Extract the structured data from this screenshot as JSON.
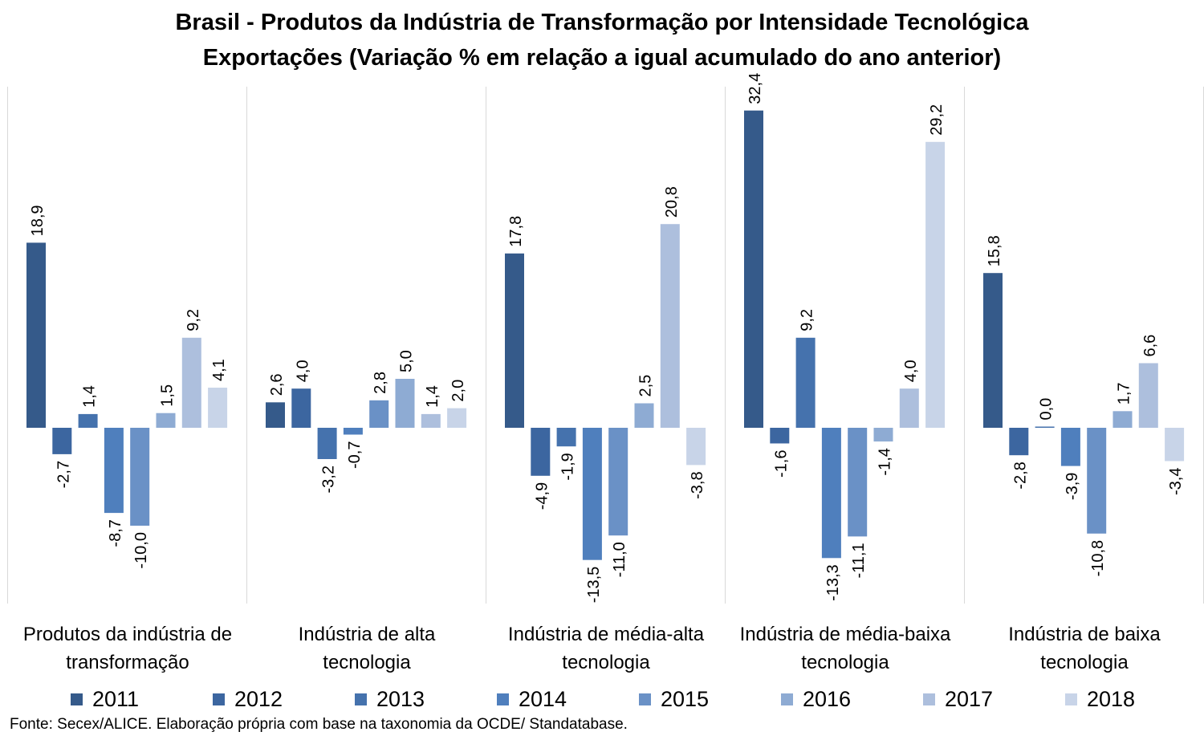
{
  "title_line1": "Brasil - Produtos da Indústria de Transformação por Intensidade Tecnológica",
  "title_line2": "Exportações (Variação % em relação a igual acumulado do ano anterior)",
  "source": "Fonte: Secex/ALICE. Elaboração própria com base na taxonomia da OCDE/ Standatabase.",
  "chart_data": {
    "type": "bar",
    "categories": [
      [
        "Produtos da indústria de",
        "transformação"
      ],
      [
        "Indústria de alta",
        "tecnologia"
      ],
      [
        "Indústria de média-alta",
        "tecnologia"
      ],
      [
        "Indústria de média-baixa",
        "tecnologia"
      ],
      [
        "Indústria de baixa",
        "tecnologia"
      ]
    ],
    "series": [
      {
        "name": "2011",
        "color": "#355a8a",
        "values": [
          18.9,
          2.6,
          17.8,
          32.4,
          15.8
        ],
        "labels": [
          "18,9",
          "2,6",
          "17,8",
          "32,4",
          "15,8"
        ]
      },
      {
        "name": "2012",
        "color": "#3c66a0",
        "values": [
          -2.7,
          4.0,
          -4.9,
          -1.6,
          -2.8
        ],
        "labels": [
          "-2,7",
          "4,0",
          "-4,9",
          "-1,6",
          "-2,8"
        ]
      },
      {
        "name": "2013",
        "color": "#4572ad",
        "values": [
          1.4,
          -3.2,
          -1.9,
          9.2,
          0.0
        ],
        "labels": [
          "1,4",
          "-3,2",
          "-1,9",
          "9,2",
          "0,0"
        ]
      },
      {
        "name": "2014",
        "color": "#4f7fbd",
        "values": [
          -8.7,
          -0.7,
          -13.5,
          -13.3,
          -3.9
        ],
        "labels": [
          "-8,7",
          "-0,7",
          "-13,5",
          "-13,3",
          "-3,9"
        ]
      },
      {
        "name": "2015",
        "color": "#6a91c6",
        "values": [
          -10.0,
          2.8,
          -11.0,
          -11.1,
          -10.8
        ],
        "labels": [
          "-10,0",
          "2,8",
          "-11,0",
          "-11,1",
          "-10,8"
        ]
      },
      {
        "name": "2016",
        "color": "#8eabd3",
        "values": [
          1.5,
          5.0,
          2.5,
          -1.4,
          1.7
        ],
        "labels": [
          "1,5",
          "5,0",
          "2,5",
          "-1,4",
          "1,7"
        ]
      },
      {
        "name": "2017",
        "color": "#adbfdd",
        "values": [
          9.2,
          1.4,
          20.8,
          4.0,
          6.6
        ],
        "labels": [
          "9,2",
          "1,4",
          "20,8",
          "4,0",
          "6,6"
        ]
      },
      {
        "name": "2018",
        "color": "#c8d4e8",
        "values": [
          4.1,
          2.0,
          -3.8,
          29.2,
          -3.4
        ],
        "labels": [
          "4,1",
          "2,0",
          "-3,8",
          "29,2",
          "-3,4"
        ]
      }
    ],
    "legend_position": "bottom",
    "grid": false
  }
}
